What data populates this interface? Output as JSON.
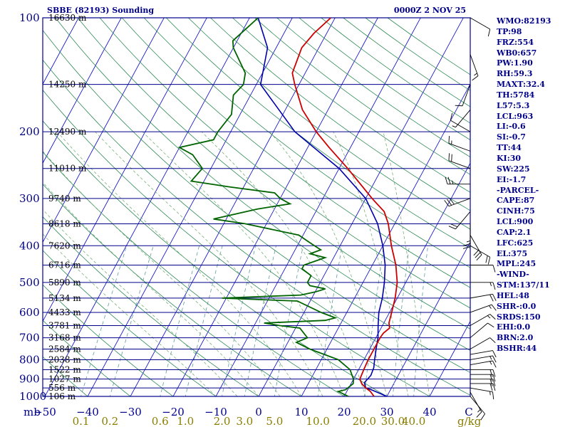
{
  "header": {
    "title": "SBBE (82193) Sounding",
    "datetime": "0000Z  2 NOV 25"
  },
  "colors": {
    "axis": "#00008b",
    "isobar": "#00008b",
    "isotherm": "#0000cd",
    "dry_adiabat": "#2e8b57",
    "moist_adiabat": "#7ab07a",
    "mixing_ratio": "#5f9ea0",
    "temperature": "#cc0000",
    "dewpoint": "#006400",
    "parcel": "#0000aa",
    "wind": "#000000",
    "mixing_ratio_label": "#8b7d00"
  },
  "chart_data": {
    "type": "skew-t",
    "pressure_levels": [
      100,
      200,
      300,
      400,
      500,
      600,
      700,
      800,
      900,
      1000
    ],
    "height_labels": [
      {
        "p": 100,
        "h": "16630 m"
      },
      {
        "p": 150,
        "h": "14250 m"
      },
      {
        "p": 200,
        "h": "12490 m"
      },
      {
        "p": 250,
        "h": "11010 m"
      },
      {
        "p": 300,
        "h": "9740 m"
      },
      {
        "p": 350,
        "h": "8618 m"
      },
      {
        "p": 400,
        "h": "7620 m"
      },
      {
        "p": 450,
        "h": "6716 m"
      },
      {
        "p": 500,
        "h": "5890 m"
      },
      {
        "p": 550,
        "h": "5134 m"
      },
      {
        "p": 600,
        "h": "4433 m"
      },
      {
        "p": 650,
        "h": "3781 m"
      },
      {
        "p": 700,
        "h": "3168 m"
      },
      {
        "p": 750,
        "h": "2584 m"
      },
      {
        "p": 800,
        "h": "2038 m"
      },
      {
        "p": 850,
        "h": "1522 m"
      },
      {
        "p": 900,
        "h": "1027 m"
      },
      {
        "p": 950,
        "h": "556 m"
      },
      {
        "p": 1000,
        "h": "106 m"
      }
    ],
    "temperature_ticks": [
      -50,
      -40,
      -30,
      -20,
      -10,
      0,
      10,
      20,
      30,
      40
    ],
    "temperature_unit_label": "C",
    "pressure_unit_label": "mb",
    "mixing_ratio_ticks": [
      "0.1",
      "0.2",
      "0.6",
      "1.0",
      "2.0",
      "3.0",
      "5.0",
      "10.0",
      "20.0",
      "30.0",
      "40.0"
    ],
    "mixing_ratio_unit_label": "g/kg",
    "temperature_profile": [
      [
        1000,
        27
      ],
      [
        970,
        25.5
      ],
      [
        950,
        24
      ],
      [
        925,
        22.5
      ],
      [
        900,
        21.5
      ],
      [
        850,
        21.2
      ],
      [
        800,
        21
      ],
      [
        750,
        21
      ],
      [
        700,
        21
      ],
      [
        680,
        21.2
      ],
      [
        660,
        22
      ],
      [
        640,
        21.2
      ],
      [
        600,
        20.5
      ],
      [
        550,
        19.5
      ],
      [
        500,
        18
      ],
      [
        450,
        15.5
      ],
      [
        400,
        12
      ],
      [
        350,
        8.5
      ],
      [
        325,
        6
      ],
      [
        300,
        1.5
      ],
      [
        250,
        -8
      ],
      [
        220,
        -15
      ],
      [
        200,
        -20
      ],
      [
        175,
        -26
      ],
      [
        150,
        -31
      ],
      [
        140,
        -33
      ],
      [
        120,
        -34
      ],
      [
        110,
        -33
      ],
      [
        100,
        -31
      ]
    ],
    "dewpoint_profile": [
      [
        1000,
        21
      ],
      [
        970,
        18
      ],
      [
        960,
        19.5
      ],
      [
        925,
        20.5
      ],
      [
        900,
        20
      ],
      [
        850,
        18
      ],
      [
        800,
        14
      ],
      [
        750,
        6
      ],
      [
        720,
        2
      ],
      [
        700,
        4
      ],
      [
        660,
        1
      ],
      [
        650,
        -4
      ],
      [
        640,
        -8
      ],
      [
        630,
        6
      ],
      [
        620,
        8
      ],
      [
        600,
        4
      ],
      [
        560,
        -3
      ],
      [
        550,
        -21
      ],
      [
        540,
        -3
      ],
      [
        530,
        0
      ],
      [
        520,
        2
      ],
      [
        510,
        -2
      ],
      [
        500,
        -3
      ],
      [
        480,
        -3
      ],
      [
        460,
        -6
      ],
      [
        450,
        -6
      ],
      [
        430,
        -2
      ],
      [
        420,
        -6
      ],
      [
        410,
        -4
      ],
      [
        400,
        -6
      ],
      [
        390,
        -8
      ],
      [
        375,
        -11
      ],
      [
        350,
        -25
      ],
      [
        340,
        -33
      ],
      [
        320,
        -24
      ],
      [
        310,
        -17
      ],
      [
        300,
        -20
      ],
      [
        290,
        -22
      ],
      [
        280,
        -33
      ],
      [
        270,
        -43
      ],
      [
        250,
        -42
      ],
      [
        230,
        -46
      ],
      [
        220,
        -50
      ],
      [
        210,
        -43
      ],
      [
        200,
        -43
      ],
      [
        180,
        -42
      ],
      [
        160,
        -44
      ],
      [
        150,
        -43
      ],
      [
        140,
        -44
      ],
      [
        120,
        -50
      ],
      [
        115,
        -51
      ],
      [
        100,
        -48
      ]
    ],
    "parcel_profile": [
      [
        1000,
        30
      ],
      [
        960,
        25.5
      ],
      [
        950,
        24
      ],
      [
        920,
        23
      ],
      [
        880,
        23.6
      ],
      [
        840,
        23.3
      ],
      [
        800,
        22.5
      ],
      [
        750,
        21.5
      ],
      [
        700,
        20.5
      ],
      [
        650,
        19
      ],
      [
        600,
        17.5
      ],
      [
        550,
        16.5
      ],
      [
        500,
        15
      ],
      [
        450,
        13
      ],
      [
        400,
        10
      ],
      [
        350,
        6
      ],
      [
        300,
        0
      ],
      [
        250,
        -10
      ],
      [
        200,
        -25
      ],
      [
        150,
        -39
      ],
      [
        120,
        -42
      ],
      [
        100,
        -48
      ]
    ],
    "wind_barbs": [
      [
        1000,
        140,
        10
      ],
      [
        975,
        150,
        15
      ],
      [
        950,
        100,
        15
      ],
      [
        925,
        90,
        20
      ],
      [
        900,
        90,
        20
      ],
      [
        875,
        90,
        20
      ],
      [
        850,
        90,
        20
      ],
      [
        825,
        80,
        15
      ],
      [
        800,
        80,
        15
      ],
      [
        775,
        80,
        10
      ],
      [
        750,
        60,
        10
      ],
      [
        700,
        50,
        10
      ],
      [
        650,
        60,
        15
      ],
      [
        600,
        70,
        15
      ],
      [
        550,
        80,
        20
      ],
      [
        500,
        90,
        15
      ],
      [
        450,
        90,
        10
      ],
      [
        400,
        120,
        20
      ],
      [
        375,
        150,
        30
      ],
      [
        350,
        180,
        25
      ],
      [
        325,
        220,
        20
      ],
      [
        300,
        250,
        30
      ],
      [
        275,
        270,
        25
      ],
      [
        250,
        290,
        20
      ],
      [
        225,
        290,
        15
      ],
      [
        200,
        300,
        10
      ],
      [
        175,
        220,
        5
      ],
      [
        150,
        200,
        10
      ],
      [
        125,
        160,
        15
      ],
      [
        100,
        120,
        10
      ]
    ]
  },
  "indices": [
    "WMO:82193",
    "TP:98",
    "FRZ:554",
    "WB0:657",
    "PW:1.90",
    "RH:59.3",
    "MAXT:32.4",
    "TH:5784",
    "L57:5.3",
    "LCL:963",
    "LI:-0.6",
    "SI:-0.7",
    "TT:44",
    "KI:30",
    "SW:225",
    "EI:-1.7",
    "-PARCEL-",
    "CAPE:87",
    "CINH:75",
    "LCL:900",
    "CAP:2.1",
    "LFC:625",
    "EL:375",
    "MPL:245",
    "-WIND-",
    "STM:137/11",
    "HEL:48",
    "SHR-:0.0",
    "SRDS:150",
    "EHI:0.0",
    "BRN:2.0",
    "BSHR:44"
  ]
}
